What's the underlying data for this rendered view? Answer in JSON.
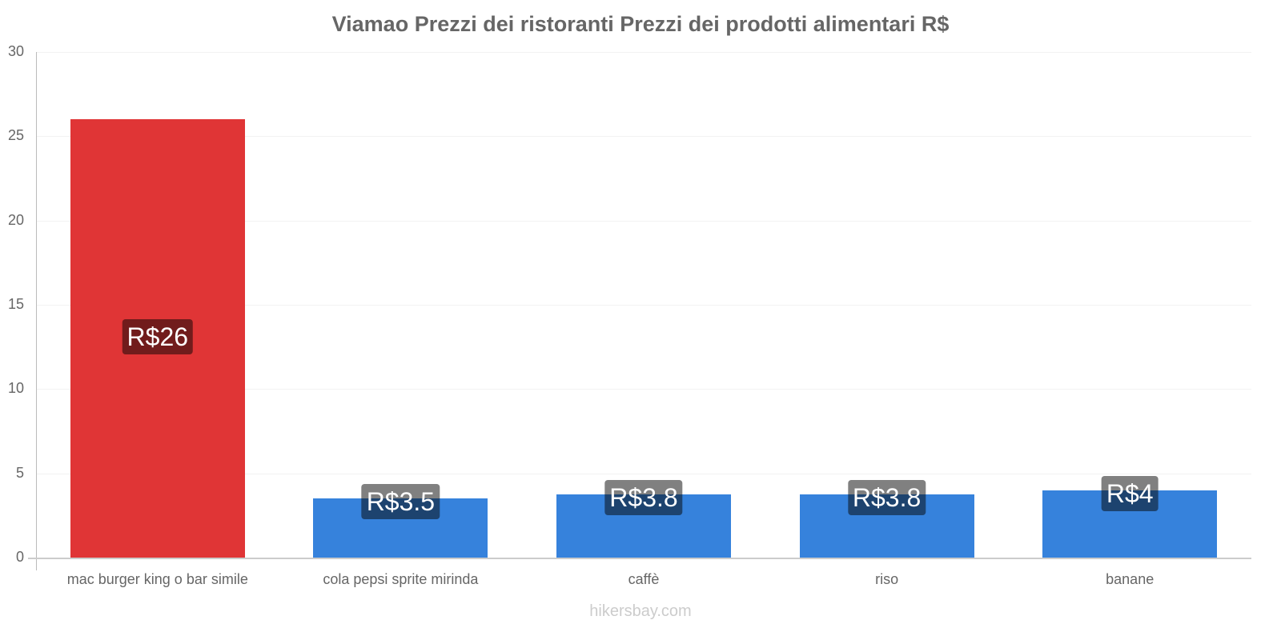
{
  "title": "Viamao Prezzi dei ristoranti Prezzi dei prodotti alimentari R$",
  "watermark": "hikersbay.com",
  "colors": {
    "highlight_bar": "#e03536",
    "normal_bar": "#3682dc",
    "highlight_label_bg": "#711c1c",
    "normal_label_bg": "#1d436f",
    "label_top_bg": "#808080"
  },
  "chart_data": {
    "type": "bar",
    "title": "Viamao Prezzi dei ristoranti Prezzi dei prodotti alimentari R$",
    "xlabel": "",
    "ylabel": "",
    "ylim": [
      0,
      30
    ],
    "yticks": [
      0,
      5,
      10,
      15,
      20,
      25,
      30
    ],
    "grid": true,
    "legend": null,
    "categories": [
      "mac burger king o bar simile",
      "cola pepsi sprite mirinda",
      "caffè",
      "riso",
      "banane"
    ],
    "values": [
      26,
      3.5,
      3.75,
      3.75,
      4
    ],
    "data_labels": [
      "R$26",
      "R$3.5",
      "R$3.8",
      "R$3.8",
      "R$4"
    ],
    "highlight_index": 0
  }
}
